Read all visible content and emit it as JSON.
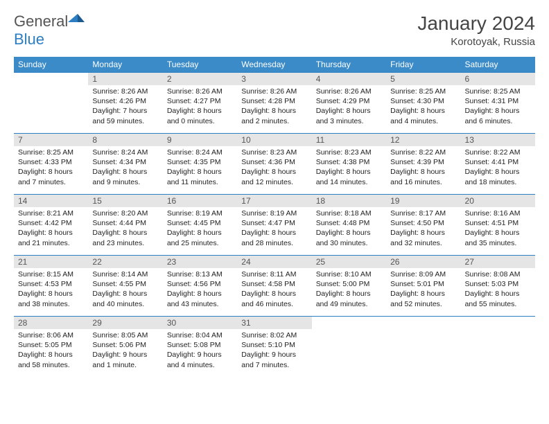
{
  "logo": {
    "word1": "General",
    "word2": "Blue"
  },
  "header": {
    "title": "January 2024",
    "location": "Korotoyak, Russia"
  },
  "colors": {
    "header_bg": "#3b8bc9",
    "header_text": "#ffffff",
    "daynum_bg": "#e5e5e5",
    "row_border": "#2c7dc1",
    "body_text": "#222222",
    "logo_gray": "#555555",
    "logo_blue": "#2c7dc1",
    "title_gray": "#444444"
  },
  "columns": [
    "Sunday",
    "Monday",
    "Tuesday",
    "Wednesday",
    "Thursday",
    "Friday",
    "Saturday"
  ],
  "weeks": [
    [
      {
        "n": "",
        "sr": "",
        "ss": "",
        "dl": ""
      },
      {
        "n": "1",
        "sr": "8:26 AM",
        "ss": "4:26 PM",
        "dl": "7 hours and 59 minutes."
      },
      {
        "n": "2",
        "sr": "8:26 AM",
        "ss": "4:27 PM",
        "dl": "8 hours and 0 minutes."
      },
      {
        "n": "3",
        "sr": "8:26 AM",
        "ss": "4:28 PM",
        "dl": "8 hours and 2 minutes."
      },
      {
        "n": "4",
        "sr": "8:26 AM",
        "ss": "4:29 PM",
        "dl": "8 hours and 3 minutes."
      },
      {
        "n": "5",
        "sr": "8:25 AM",
        "ss": "4:30 PM",
        "dl": "8 hours and 4 minutes."
      },
      {
        "n": "6",
        "sr": "8:25 AM",
        "ss": "4:31 PM",
        "dl": "8 hours and 6 minutes."
      }
    ],
    [
      {
        "n": "7",
        "sr": "8:25 AM",
        "ss": "4:33 PM",
        "dl": "8 hours and 7 minutes."
      },
      {
        "n": "8",
        "sr": "8:24 AM",
        "ss": "4:34 PM",
        "dl": "8 hours and 9 minutes."
      },
      {
        "n": "9",
        "sr": "8:24 AM",
        "ss": "4:35 PM",
        "dl": "8 hours and 11 minutes."
      },
      {
        "n": "10",
        "sr": "8:23 AM",
        "ss": "4:36 PM",
        "dl": "8 hours and 12 minutes."
      },
      {
        "n": "11",
        "sr": "8:23 AM",
        "ss": "4:38 PM",
        "dl": "8 hours and 14 minutes."
      },
      {
        "n": "12",
        "sr": "8:22 AM",
        "ss": "4:39 PM",
        "dl": "8 hours and 16 minutes."
      },
      {
        "n": "13",
        "sr": "8:22 AM",
        "ss": "4:41 PM",
        "dl": "8 hours and 18 minutes."
      }
    ],
    [
      {
        "n": "14",
        "sr": "8:21 AM",
        "ss": "4:42 PM",
        "dl": "8 hours and 21 minutes."
      },
      {
        "n": "15",
        "sr": "8:20 AM",
        "ss": "4:44 PM",
        "dl": "8 hours and 23 minutes."
      },
      {
        "n": "16",
        "sr": "8:19 AM",
        "ss": "4:45 PM",
        "dl": "8 hours and 25 minutes."
      },
      {
        "n": "17",
        "sr": "8:19 AM",
        "ss": "4:47 PM",
        "dl": "8 hours and 28 minutes."
      },
      {
        "n": "18",
        "sr": "8:18 AM",
        "ss": "4:48 PM",
        "dl": "8 hours and 30 minutes."
      },
      {
        "n": "19",
        "sr": "8:17 AM",
        "ss": "4:50 PM",
        "dl": "8 hours and 32 minutes."
      },
      {
        "n": "20",
        "sr": "8:16 AM",
        "ss": "4:51 PM",
        "dl": "8 hours and 35 minutes."
      }
    ],
    [
      {
        "n": "21",
        "sr": "8:15 AM",
        "ss": "4:53 PM",
        "dl": "8 hours and 38 minutes."
      },
      {
        "n": "22",
        "sr": "8:14 AM",
        "ss": "4:55 PM",
        "dl": "8 hours and 40 minutes."
      },
      {
        "n": "23",
        "sr": "8:13 AM",
        "ss": "4:56 PM",
        "dl": "8 hours and 43 minutes."
      },
      {
        "n": "24",
        "sr": "8:11 AM",
        "ss": "4:58 PM",
        "dl": "8 hours and 46 minutes."
      },
      {
        "n": "25",
        "sr": "8:10 AM",
        "ss": "5:00 PM",
        "dl": "8 hours and 49 minutes."
      },
      {
        "n": "26",
        "sr": "8:09 AM",
        "ss": "5:01 PM",
        "dl": "8 hours and 52 minutes."
      },
      {
        "n": "27",
        "sr": "8:08 AM",
        "ss": "5:03 PM",
        "dl": "8 hours and 55 minutes."
      }
    ],
    [
      {
        "n": "28",
        "sr": "8:06 AM",
        "ss": "5:05 PM",
        "dl": "8 hours and 58 minutes."
      },
      {
        "n": "29",
        "sr": "8:05 AM",
        "ss": "5:06 PM",
        "dl": "9 hours and 1 minute."
      },
      {
        "n": "30",
        "sr": "8:04 AM",
        "ss": "5:08 PM",
        "dl": "9 hours and 4 minutes."
      },
      {
        "n": "31",
        "sr": "8:02 AM",
        "ss": "5:10 PM",
        "dl": "9 hours and 7 minutes."
      },
      {
        "n": "",
        "sr": "",
        "ss": "",
        "dl": ""
      },
      {
        "n": "",
        "sr": "",
        "ss": "",
        "dl": ""
      },
      {
        "n": "",
        "sr": "",
        "ss": "",
        "dl": ""
      }
    ]
  ],
  "labels": {
    "sunrise": "Sunrise:",
    "sunset": "Sunset:",
    "daylight": "Daylight:"
  }
}
